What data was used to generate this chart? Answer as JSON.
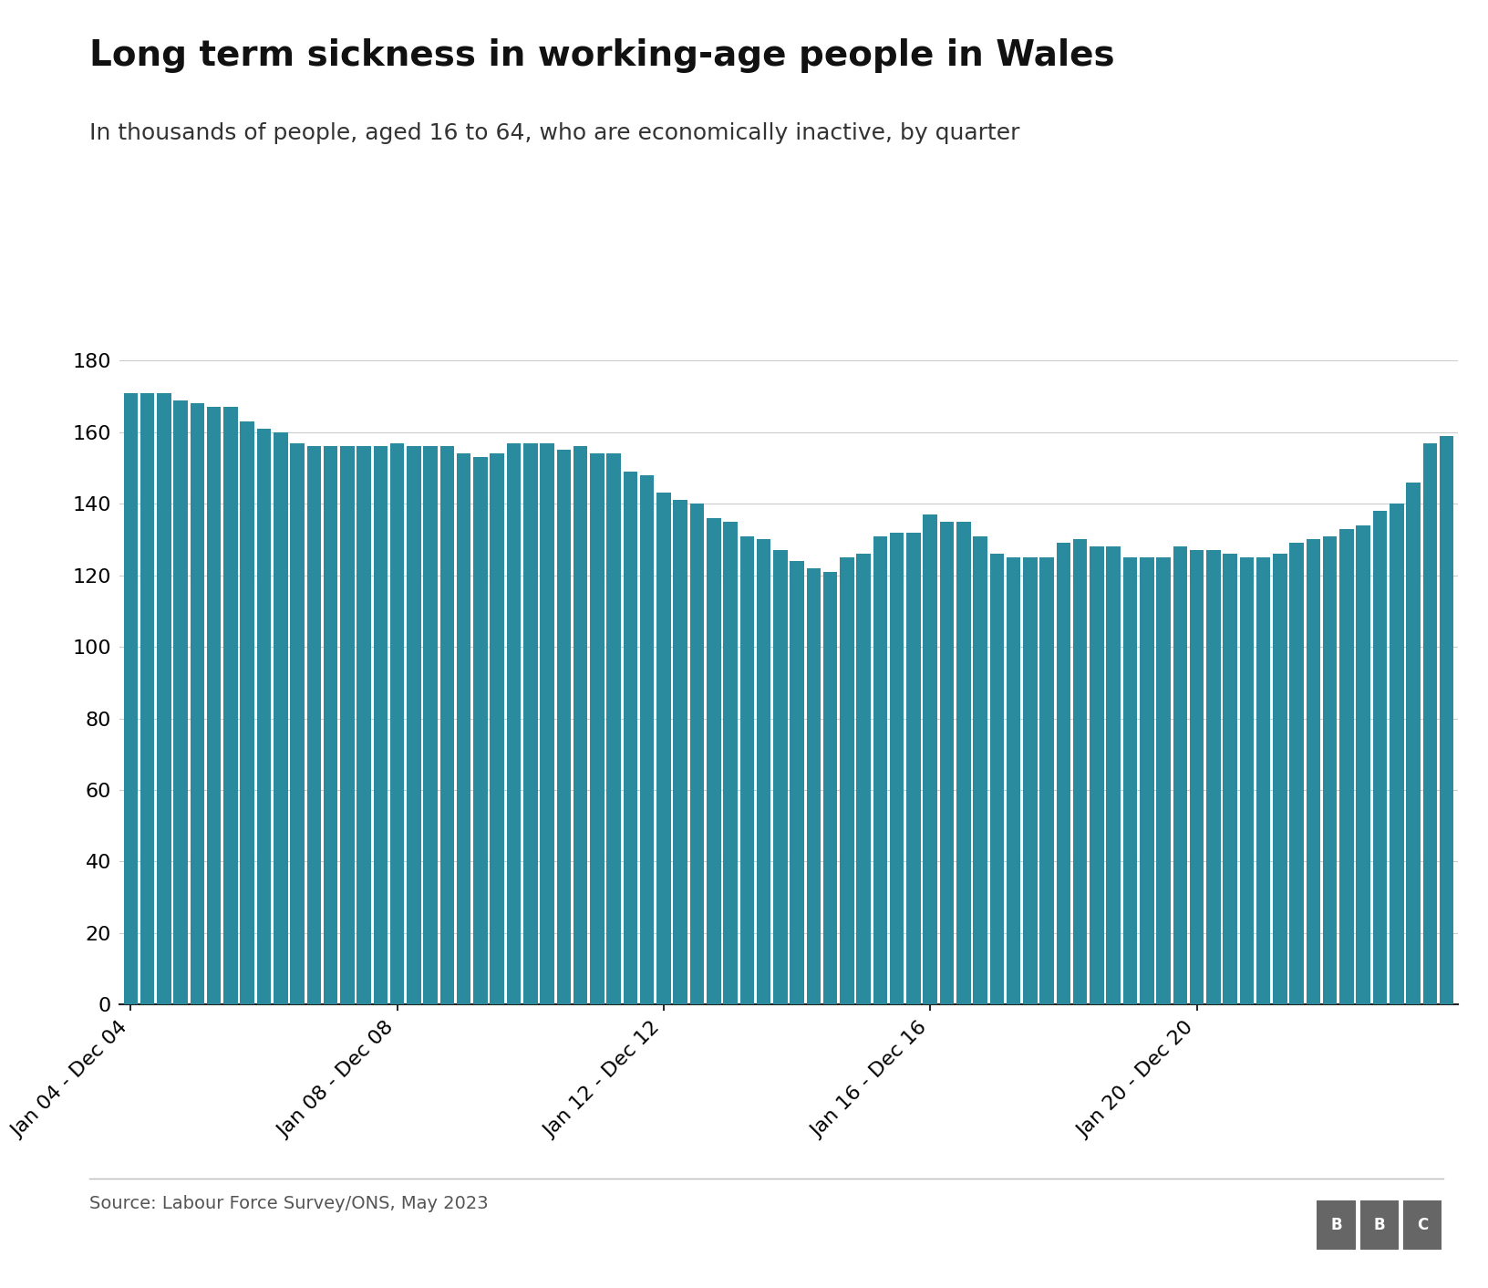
{
  "title": "Long term sickness in working-age people in Wales",
  "subtitle": "In thousands of people, aged 16 to 64, who are economically inactive, by quarter",
  "source": "Source: Labour Force Survey/ONS, May 2023",
  "bar_color": "#2a8a9e",
  "background_color": "#ffffff",
  "ylim": [
    0,
    180
  ],
  "yticks": [
    0,
    20,
    40,
    60,
    80,
    100,
    120,
    140,
    160,
    180
  ],
  "values": [
    171,
    171,
    171,
    169,
    168,
    167,
    167,
    163,
    161,
    160,
    157,
    156,
    156,
    156,
    156,
    156,
    157,
    156,
    156,
    156,
    154,
    153,
    154,
    157,
    157,
    157,
    155,
    156,
    154,
    154,
    149,
    148,
    143,
    141,
    140,
    136,
    135,
    131,
    130,
    127,
    124,
    122,
    121,
    125,
    126,
    131,
    132,
    132,
    137,
    135,
    135,
    131,
    126,
    125,
    125,
    125,
    129,
    130,
    128,
    128,
    125,
    125,
    125,
    128,
    127,
    127,
    126,
    125,
    125,
    126,
    129,
    130,
    131,
    133,
    134,
    138,
    140,
    146,
    157,
    159
  ],
  "xtick_positions": [
    0,
    16,
    32,
    48,
    64
  ],
  "xtick_labels": [
    "Jan 04 - Dec 04",
    "Jan 08 - Dec 08",
    "Jan 12 - Dec 12",
    "Jan 16 - Dec 16",
    "Jan 20 - Dec 20"
  ],
  "title_fontsize": 28,
  "subtitle_fontsize": 18,
  "axis_fontsize": 16,
  "source_fontsize": 14,
  "grid_color": "#cccccc",
  "spine_color": "#222222"
}
